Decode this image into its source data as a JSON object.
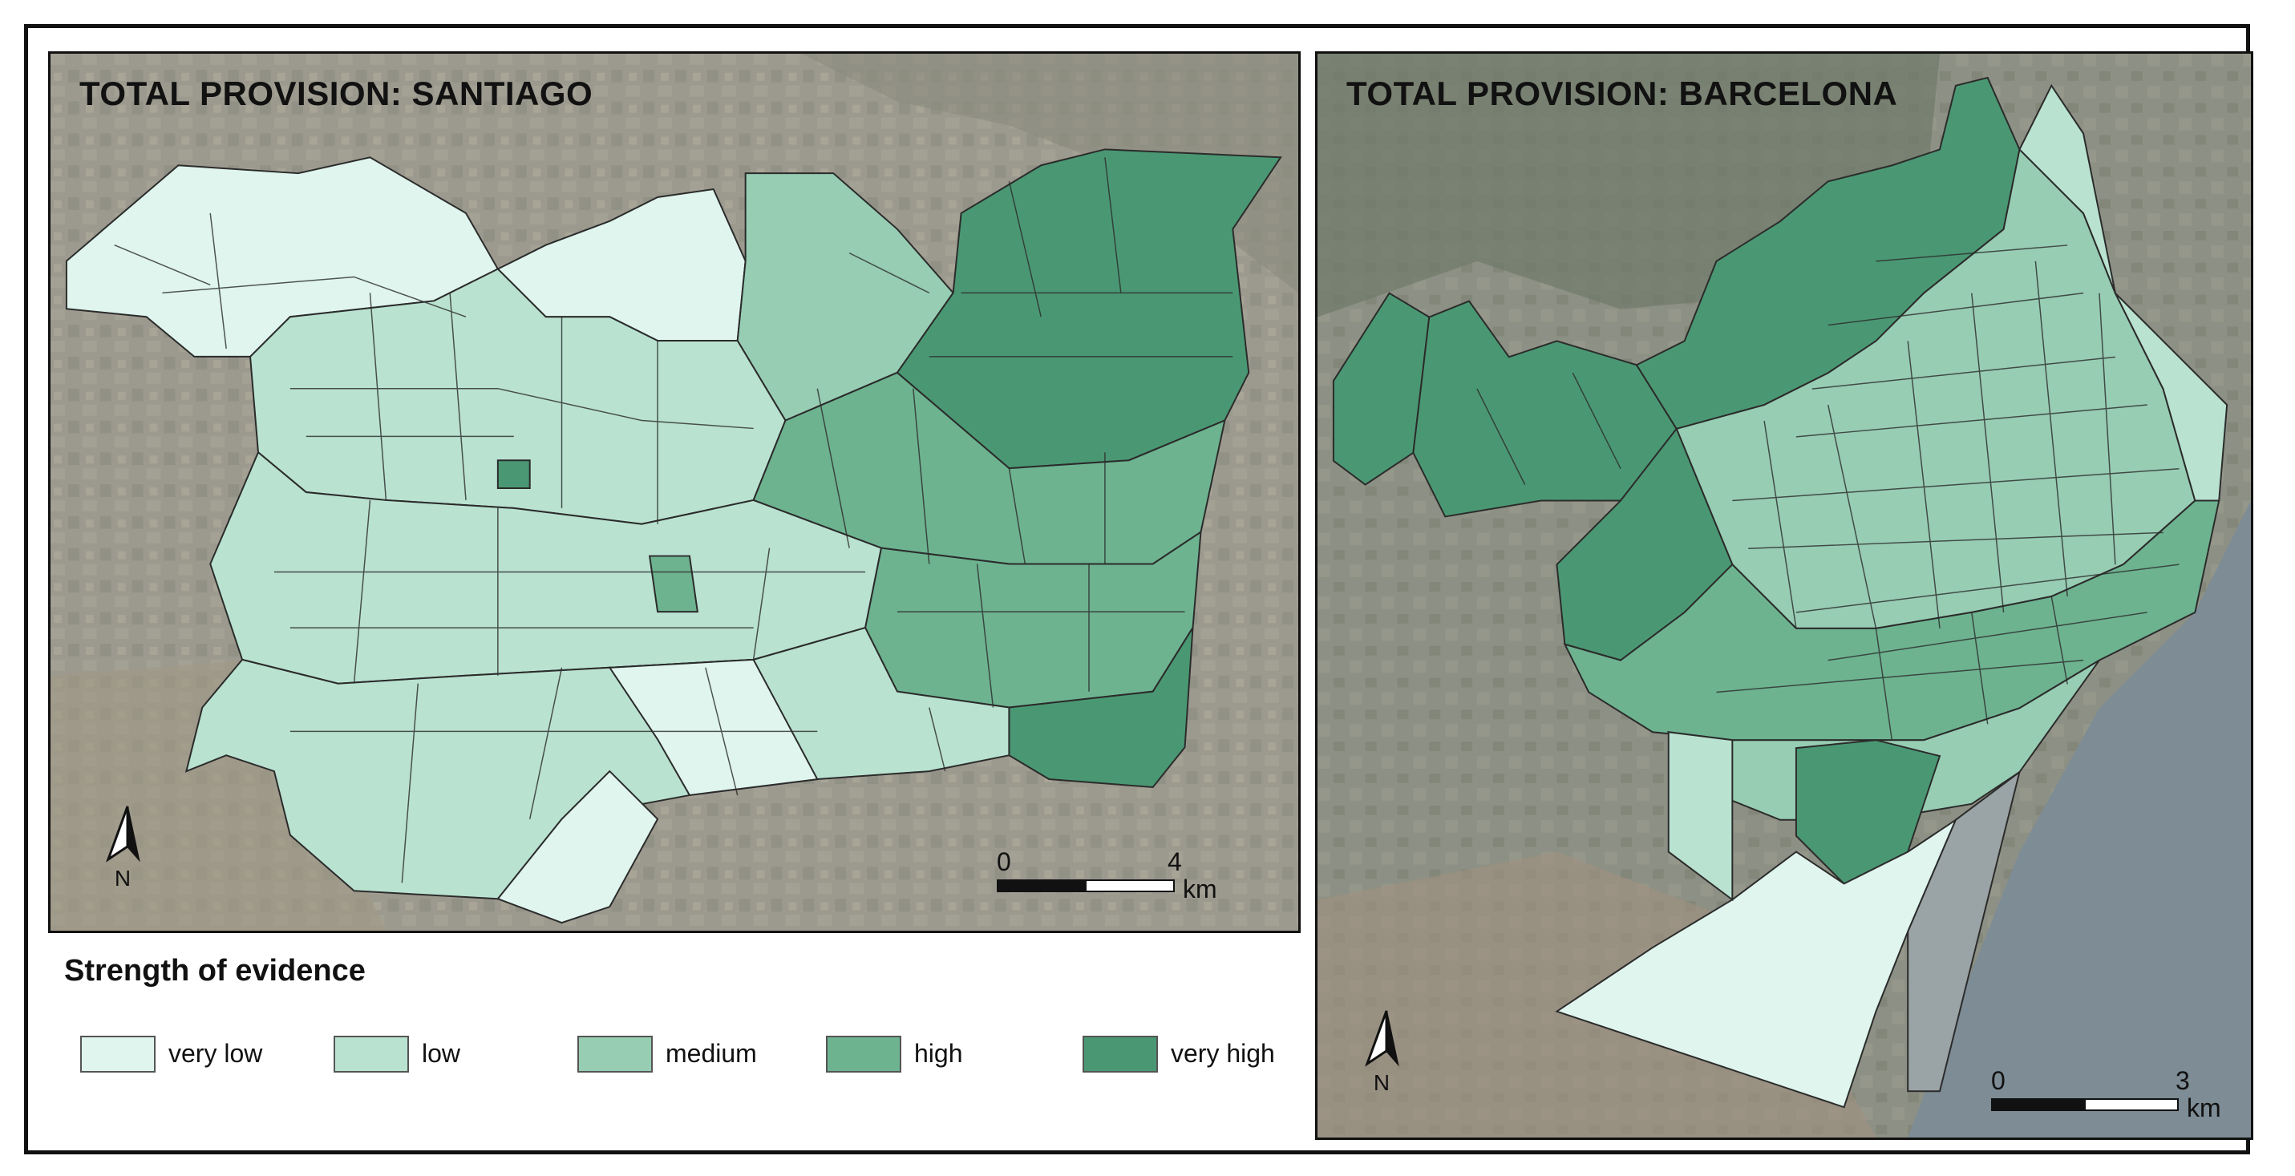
{
  "santiago": {
    "title": "TOTAL PROVISION: SANTIAGO",
    "north_label": "N",
    "scale": {
      "start": "0",
      "end": "4",
      "unit": "km"
    }
  },
  "barcelona": {
    "title": "TOTAL PROVISION: BARCELONA",
    "north_label": "N",
    "scale": {
      "start": "0",
      "end": "3",
      "unit": "km"
    }
  },
  "legend": {
    "title": "Strength of evidence",
    "items": [
      {
        "label": "very low",
        "color": "#dff5ee"
      },
      {
        "label": "low",
        "color": "#b9e2d1"
      },
      {
        "label": "medium",
        "color": "#97cdb3"
      },
      {
        "label": "high",
        "color": "#6db390"
      },
      {
        "label": "very high",
        "color": "#4a9873"
      }
    ]
  },
  "colors": {
    "satellite_base": "#8f8f86",
    "very_low": "#dff5ee",
    "low": "#b9e2d1",
    "medium": "#97cdb3",
    "high": "#6db390",
    "very_high": "#4a9873",
    "sea": "#7d8c95",
    "outline": "#2b2b2b"
  }
}
